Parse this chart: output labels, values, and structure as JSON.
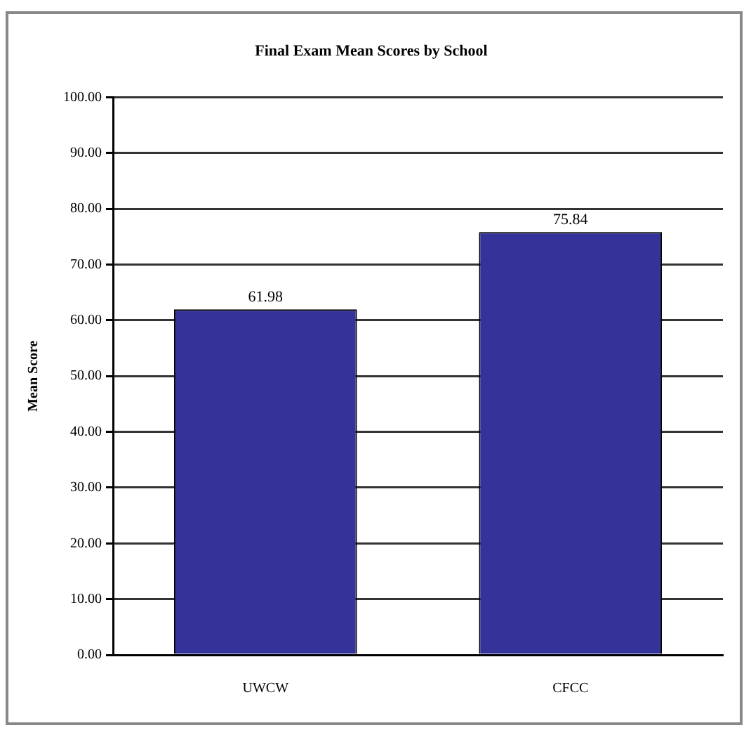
{
  "chart_data": {
    "type": "bar",
    "title": "Final Exam Mean Scores by School",
    "ylabel": "Mean Score",
    "categories": [
      "UWCW",
      "CFCC"
    ],
    "values": [
      61.98,
      75.84
    ],
    "color": "#333399",
    "value_labels": [
      "61.98",
      "75.84"
    ],
    "ylim": [
      0,
      100
    ],
    "yticks": [
      {
        "value": 0,
        "label": "0.00"
      },
      {
        "value": 10,
        "label": "10.00"
      },
      {
        "value": 20,
        "label": "20.00"
      },
      {
        "value": 30,
        "label": "30.00"
      },
      {
        "value": 40,
        "label": "40.00"
      },
      {
        "value": 50,
        "label": "50.00"
      },
      {
        "value": 60,
        "label": "60.00"
      },
      {
        "value": 70,
        "label": "70.00"
      },
      {
        "value": 80,
        "label": "80.00"
      },
      {
        "value": 90,
        "label": "90.00"
      },
      {
        "value": 100,
        "label": "100.00"
      }
    ],
    "grid": "y",
    "legend": false
  }
}
